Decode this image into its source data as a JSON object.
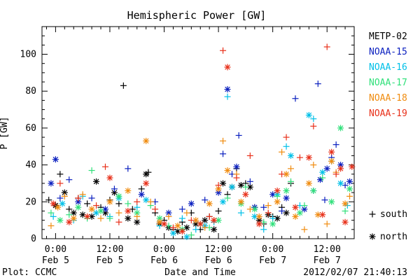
{
  "chart_data": {
    "type": "scatter",
    "title": "Hemispheric Power [GW]",
    "ylabel": "P [GW]",
    "xlabel": "Date and Time",
    "ylim": [
      0,
      115
    ],
    "yticks": [
      0,
      20,
      40,
      60,
      80,
      100
    ],
    "xlim": [
      -3,
      66
    ],
    "xticks": [
      {
        "x": 0,
        "time": "0:00",
        "date": "Feb 5"
      },
      {
        "x": 12,
        "time": "12:00",
        "date": "Feb 5"
      },
      {
        "x": 24,
        "time": "0:00",
        "date": "Feb 6"
      },
      {
        "x": 36,
        "time": "12:00",
        "date": "Feb 6"
      },
      {
        "x": 48,
        "time": "0:00",
        "date": "Feb 7"
      },
      {
        "x": 60,
        "time": "12:00",
        "date": "Feb 7"
      }
    ],
    "x_units": "hours from 2012-02-05 00:00 UT",
    "legend_position": "right",
    "marker_legend": [
      {
        "symbol": "+",
        "label": "south"
      },
      {
        "symbol": "*",
        "label": "north"
      }
    ],
    "series": [
      {
        "name": "METP-02",
        "color": "#000000",
        "points": [
          [
            -1.5,
            21,
            "s"
          ],
          [
            0,
            18,
            "n"
          ],
          [
            1,
            35,
            "s"
          ],
          [
            2,
            25,
            "n"
          ],
          [
            3,
            16,
            "s"
          ],
          [
            4,
            14,
            "n"
          ],
          [
            5,
            22,
            "s"
          ],
          [
            6,
            13,
            "n"
          ],
          [
            7,
            19,
            "s"
          ],
          [
            8,
            12,
            "n"
          ],
          [
            9,
            31,
            "n"
          ],
          [
            10,
            17,
            "s"
          ],
          [
            11,
            14,
            "n"
          ],
          [
            12,
            21,
            "s"
          ],
          [
            13,
            25,
            "n"
          ],
          [
            14,
            19,
            "s"
          ],
          [
            15,
            83,
            "s"
          ],
          [
            16,
            11,
            "n"
          ],
          [
            17,
            16,
            "s"
          ],
          [
            18,
            9,
            "n"
          ],
          [
            19,
            27,
            "s"
          ],
          [
            20,
            35,
            "n"
          ],
          [
            20.5,
            36,
            "s"
          ],
          [
            22,
            14,
            "s"
          ],
          [
            23,
            8,
            "n"
          ],
          [
            24,
            10,
            "s"
          ],
          [
            25,
            6,
            "n"
          ],
          [
            26,
            5,
            "s"
          ],
          [
            27,
            4,
            "n"
          ],
          [
            28,
            9,
            "s"
          ],
          [
            29,
            6,
            "n"
          ],
          [
            30,
            14,
            "s"
          ],
          [
            31,
            8,
            "n"
          ],
          [
            32,
            5,
            "s"
          ],
          [
            33,
            10,
            "n"
          ],
          [
            34,
            12,
            "s"
          ],
          [
            35,
            5,
            "n"
          ],
          [
            36,
            15,
            "s"
          ],
          [
            37,
            30,
            "n"
          ],
          [
            38,
            24,
            "s"
          ],
          [
            39,
            28,
            "n"
          ],
          [
            40,
            38,
            "s"
          ],
          [
            41,
            29,
            "n"
          ],
          [
            42,
            30,
            "s"
          ],
          [
            43,
            28,
            "n"
          ],
          [
            44,
            17,
            "s"
          ],
          [
            45,
            10,
            "n"
          ],
          [
            46,
            8,
            "s"
          ],
          [
            47,
            13,
            "n"
          ],
          [
            48,
            12,
            "s"
          ],
          [
            49,
            11,
            "n"
          ],
          [
            50,
            17,
            "s"
          ],
          [
            51,
            14,
            "n"
          ],
          [
            52,
            30,
            "s"
          ]
        ]
      },
      {
        "name": "NOAA-15",
        "color": "#0a1fbf",
        "points": [
          [
            -1,
            30,
            "n"
          ],
          [
            0,
            43,
            "n"
          ],
          [
            1,
            22,
            "s"
          ],
          [
            3,
            32,
            "s"
          ],
          [
            5,
            20,
            "n"
          ],
          [
            8,
            22,
            "s"
          ],
          [
            11,
            16,
            "n"
          ],
          [
            13,
            27,
            "s"
          ],
          [
            16,
            38,
            "s"
          ],
          [
            19,
            24,
            "n"
          ],
          [
            22,
            20,
            "s"
          ],
          [
            25,
            14,
            "n"
          ],
          [
            28,
            16,
            "s"
          ],
          [
            30,
            19,
            "n"
          ],
          [
            33,
            21,
            "s"
          ],
          [
            36,
            25,
            "n"
          ],
          [
            37,
            46,
            "s"
          ],
          [
            38,
            81,
            "n"
          ],
          [
            39,
            35,
            "s"
          ],
          [
            40,
            39,
            "n"
          ],
          [
            40.5,
            56,
            "s"
          ],
          [
            43,
            31,
            "s"
          ],
          [
            44,
            17,
            "n"
          ],
          [
            46,
            17,
            "s"
          ],
          [
            48,
            24,
            "n"
          ],
          [
            50,
            15,
            "s"
          ],
          [
            51,
            22,
            "n"
          ],
          [
            53,
            76,
            "s"
          ],
          [
            55,
            16,
            "n"
          ],
          [
            57,
            26,
            "s"
          ],
          [
            58,
            84,
            "s"
          ],
          [
            60,
            38,
            "n"
          ],
          [
            61,
            44,
            "s"
          ],
          [
            62,
            51,
            "s"
          ],
          [
            63,
            40,
            "n"
          ],
          [
            64,
            29,
            "s"
          ],
          [
            65,
            31,
            "n"
          ],
          [
            58.5,
            32,
            "n"
          ],
          [
            59.5,
            21,
            "s"
          ]
        ]
      },
      {
        "name": "NOAA-16",
        "color": "#00c0e8",
        "points": [
          [
            -0.5,
            12,
            "s"
          ],
          [
            1.5,
            19,
            "n"
          ],
          [
            4,
            10,
            "s"
          ],
          [
            6,
            23,
            "s"
          ],
          [
            9,
            14,
            "n"
          ],
          [
            12,
            12,
            "s"
          ],
          [
            14,
            22,
            "n"
          ],
          [
            18,
            17,
            "s"
          ],
          [
            20,
            21,
            "n"
          ],
          [
            23,
            7,
            "s"
          ],
          [
            26,
            3,
            "n"
          ],
          [
            28,
            11,
            "s"
          ],
          [
            29,
            1,
            "n"
          ],
          [
            31,
            5,
            "s"
          ],
          [
            33,
            7,
            "n"
          ],
          [
            35,
            9,
            "s"
          ],
          [
            37,
            20,
            "n"
          ],
          [
            38,
            77,
            "s"
          ],
          [
            39,
            28,
            "n"
          ],
          [
            41,
            14,
            "s"
          ],
          [
            44,
            12,
            "n"
          ],
          [
            46,
            5,
            "s"
          ],
          [
            48,
            11,
            "s"
          ],
          [
            49,
            24,
            "n"
          ],
          [
            51,
            50,
            "s"
          ],
          [
            52,
            45,
            "n"
          ],
          [
            54,
            18,
            "s"
          ],
          [
            56,
            67,
            "n"
          ],
          [
            57,
            65,
            "s"
          ],
          [
            59,
            36,
            "n"
          ],
          [
            61,
            42,
            "s"
          ],
          [
            63,
            30,
            "n"
          ],
          [
            64.5,
            18,
            "s"
          ]
        ]
      },
      {
        "name": "NOAA-17",
        "color": "#30e07a",
        "points": [
          [
            -1,
            14,
            "s"
          ],
          [
            1,
            10,
            "n"
          ],
          [
            3,
            13,
            "s"
          ],
          [
            5,
            17,
            "n"
          ],
          [
            7,
            11,
            "s"
          ],
          [
            8,
            37,
            "s"
          ],
          [
            10,
            15,
            "n"
          ],
          [
            12,
            11,
            "s"
          ],
          [
            14,
            23,
            "n"
          ],
          [
            16,
            19,
            "s"
          ],
          [
            18,
            14,
            "n"
          ],
          [
            21,
            18,
            "s"
          ],
          [
            23,
            11,
            "n"
          ],
          [
            25,
            7,
            "s"
          ],
          [
            28,
            5,
            "n"
          ],
          [
            30,
            2,
            "s"
          ],
          [
            32,
            8,
            "n"
          ],
          [
            34,
            6,
            "s"
          ],
          [
            36,
            10,
            "n"
          ],
          [
            38,
            22,
            "s"
          ],
          [
            41,
            19,
            "n"
          ],
          [
            42,
            28,
            "s"
          ],
          [
            44,
            16,
            "n"
          ],
          [
            46,
            9,
            "s"
          ],
          [
            48,
            8,
            "n"
          ],
          [
            49,
            23,
            "s"
          ],
          [
            51,
            26,
            "n"
          ],
          [
            52,
            31,
            "s"
          ],
          [
            54,
            14,
            "n"
          ],
          [
            55,
            18,
            "s"
          ],
          [
            57,
            26,
            "n"
          ],
          [
            59,
            33,
            "s"
          ],
          [
            61,
            20,
            "n"
          ],
          [
            63,
            60,
            "n"
          ],
          [
            64,
            15,
            "s"
          ],
          [
            65,
            27,
            "n"
          ]
        ]
      },
      {
        "name": "NOAA-18",
        "color": "#f08c10",
        "points": [
          [
            -1,
            7,
            "s"
          ],
          [
            0.5,
            17,
            "n"
          ],
          [
            2,
            23,
            "s"
          ],
          [
            4,
            11,
            "n"
          ],
          [
            6,
            24,
            "s"
          ],
          [
            8,
            16,
            "n"
          ],
          [
            10,
            11,
            "s"
          ],
          [
            12,
            20,
            "n"
          ],
          [
            14,
            14,
            "s"
          ],
          [
            16,
            26,
            "n"
          ],
          [
            18,
            12,
            "s"
          ],
          [
            20,
            53,
            "n"
          ],
          [
            21,
            20,
            "s"
          ],
          [
            23,
            9,
            "n"
          ],
          [
            25,
            12,
            "s"
          ],
          [
            27,
            7,
            "n"
          ],
          [
            29,
            14,
            "s"
          ],
          [
            31,
            10,
            "n"
          ],
          [
            33,
            6,
            "s"
          ],
          [
            34,
            19,
            "n"
          ],
          [
            35,
            10,
            "s"
          ],
          [
            36,
            27,
            "n"
          ],
          [
            37,
            53,
            "s"
          ],
          [
            38,
            37,
            "n"
          ],
          [
            40,
            35,
            "s"
          ],
          [
            41,
            20,
            "n"
          ],
          [
            43,
            16,
            "s"
          ],
          [
            45,
            12,
            "n"
          ],
          [
            47,
            18,
            "s"
          ],
          [
            49,
            20,
            "n"
          ],
          [
            50,
            47,
            "s"
          ],
          [
            51,
            35,
            "n"
          ],
          [
            52,
            38,
            "s"
          ],
          [
            53,
            12,
            "n"
          ],
          [
            55,
            5,
            "s"
          ],
          [
            56,
            30,
            "n"
          ],
          [
            57,
            40,
            "s"
          ],
          [
            58,
            13,
            "n"
          ],
          [
            60,
            8,
            "s"
          ],
          [
            61,
            42,
            "n"
          ],
          [
            62,
            36,
            "s"
          ],
          [
            64,
            19,
            "n"
          ],
          [
            65,
            23,
            "s"
          ]
        ]
      },
      {
        "name": "NOAA-19",
        "color": "#e8301a",
        "points": [
          [
            -0.5,
            19,
            "n"
          ],
          [
            1,
            30,
            "s"
          ],
          [
            3,
            9,
            "n"
          ],
          [
            5,
            22,
            "s"
          ],
          [
            7,
            12,
            "n"
          ],
          [
            9,
            18,
            "s"
          ],
          [
            11,
            39,
            "s"
          ],
          [
            12,
            33,
            "n"
          ],
          [
            14,
            9,
            "s"
          ],
          [
            16,
            15,
            "n"
          ],
          [
            18,
            20,
            "s"
          ],
          [
            20,
            30,
            "n"
          ],
          [
            22,
            16,
            "s"
          ],
          [
            24,
            8,
            "n"
          ],
          [
            26,
            6,
            "s"
          ],
          [
            28,
            4,
            "n"
          ],
          [
            30,
            10,
            "s"
          ],
          [
            32,
            8,
            "n"
          ],
          [
            34,
            12,
            "s"
          ],
          [
            35,
            10,
            "n"
          ],
          [
            36,
            29,
            "s"
          ],
          [
            37,
            102,
            "s"
          ],
          [
            38,
            93,
            "n"
          ],
          [
            40,
            33,
            "s"
          ],
          [
            42,
            24,
            "n"
          ],
          [
            43,
            45,
            "s"
          ],
          [
            45,
            8,
            "n"
          ],
          [
            47,
            14,
            "s"
          ],
          [
            49,
            26,
            "n"
          ],
          [
            50,
            35,
            "s"
          ],
          [
            51,
            55,
            "s"
          ],
          [
            53,
            17,
            "n"
          ],
          [
            54,
            44,
            "s"
          ],
          [
            56,
            44,
            "n"
          ],
          [
            57,
            61,
            "s"
          ],
          [
            59,
            13,
            "n"
          ],
          [
            60,
            104,
            "s"
          ],
          [
            61,
            47,
            "n"
          ],
          [
            62,
            35,
            "s"
          ],
          [
            63,
            38,
            "n"
          ],
          [
            64,
            9,
            "n"
          ],
          [
            65.5,
            39,
            "n"
          ]
        ]
      }
    ]
  },
  "footer": {
    "left": "Plot: CCMC",
    "right": "2012/02/07 21:40:13"
  }
}
